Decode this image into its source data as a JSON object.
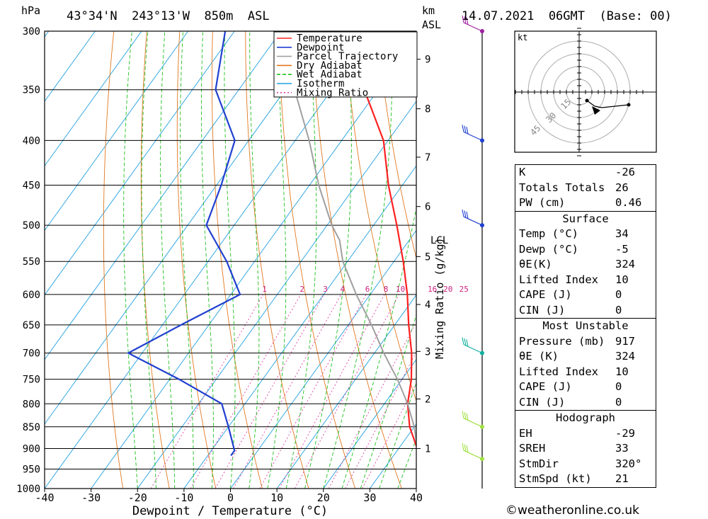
{
  "header": {
    "pressure_unit": "hPa",
    "location": "43°34'N  243°13'W  850m  ASL",
    "km_label": "km",
    "asl_label": "ASL",
    "datetime": "14.07.2021  06GMT  (Base: 00)"
  },
  "chart_data": {
    "type": "line",
    "xlabel": "Dewpoint / Temperature (°C)",
    "xlim": [
      -40,
      40
    ],
    "x_ticks": [
      -40,
      -30,
      -20,
      -10,
      0,
      10,
      20,
      30,
      40
    ],
    "ylabel": "hPa",
    "ylim": [
      1000,
      300
    ],
    "y_ticks": [
      300,
      350,
      400,
      450,
      500,
      550,
      600,
      650,
      700,
      750,
      800,
      850,
      900,
      950,
      1000
    ],
    "scale": "skew-T log-p",
    "legend_position": "top-right",
    "legend": [
      "Temperature",
      "Dewpoint",
      "Parcel Trajectory",
      "Dry Adiabat",
      "Wet Adiabat",
      "Isotherm",
      "Mixing Ratio"
    ],
    "series": [
      {
        "name": "Temperature",
        "color": "#ff2020",
        "points": [
          [
            920,
            39
          ],
          [
            917,
            37
          ],
          [
            900,
            34
          ],
          [
            850,
            29
          ],
          [
            800,
            25
          ],
          [
            750,
            22
          ],
          [
            700,
            18
          ],
          [
            650,
            13
          ],
          [
            600,
            8
          ],
          [
            550,
            2
          ],
          [
            500,
            -5
          ],
          [
            450,
            -13
          ],
          [
            400,
            -21
          ],
          [
            350,
            -33
          ],
          [
            320,
            -41
          ],
          [
            300,
            -45
          ]
        ]
      },
      {
        "name": "Dewpoint",
        "color": "#2040d0",
        "points": [
          [
            917,
            -5
          ],
          [
            905,
            -5
          ],
          [
            850,
            -10
          ],
          [
            800,
            -15
          ],
          [
            750,
            -28
          ],
          [
            700,
            -43
          ],
          [
            650,
            -36
          ],
          [
            600,
            -28
          ],
          [
            550,
            -36
          ],
          [
            500,
            -46
          ],
          [
            450,
            -49
          ],
          [
            400,
            -53
          ],
          [
            350,
            -65
          ],
          [
            300,
            -72
          ]
        ]
      },
      {
        "name": "Parcel Trajectory",
        "color": "#a0a0a0",
        "points": [
          [
            900,
            34
          ],
          [
            850,
            30
          ],
          [
            800,
            25
          ],
          [
            750,
            19
          ],
          [
            700,
            12
          ],
          [
            650,
            5
          ],
          [
            600,
            -3
          ],
          [
            550,
            -11
          ],
          [
            520,
            -15
          ],
          [
            500,
            -19
          ],
          [
            450,
            -28
          ],
          [
            400,
            -37
          ],
          [
            350,
            -48
          ],
          [
            300,
            -60
          ]
        ]
      }
    ],
    "mixing_ratio_labels": [
      "1",
      "2",
      "3",
      "4",
      "6",
      "8",
      "10",
      "16",
      "20",
      "25"
    ],
    "mixing_ratio_axis_label": "Mixing Ratio (g/kg)",
    "altitude_km_ticks": [
      "1",
      "2",
      "3",
      "4",
      "5",
      "6",
      "7",
      "8",
      "9"
    ],
    "lcl_label": "LCL",
    "hodograph_unit": "kt",
    "hodograph_ring_labels": [
      "15",
      "30",
      "45"
    ]
  },
  "indices": {
    "rows": [
      {
        "label": "K",
        "value": "-26"
      },
      {
        "label": "Totals Totals",
        "value": "26"
      },
      {
        "label": "PW (cm)",
        "value": "0.46"
      }
    ]
  },
  "surface": {
    "title": "Surface",
    "rows": [
      {
        "label": "Temp (°C)",
        "value": "34"
      },
      {
        "label": "Dewp (°C)",
        "value": "-5"
      },
      {
        "label": "θE(K)",
        "value": "324"
      },
      {
        "label": "Lifted Index",
        "value": "10"
      },
      {
        "label": "CAPE (J)",
        "value": "0"
      },
      {
        "label": "CIN (J)",
        "value": "0"
      }
    ]
  },
  "most_unstable": {
    "title": "Most Unstable",
    "rows": [
      {
        "label": "Pressure (mb)",
        "value": "917"
      },
      {
        "label": "θE (K)",
        "value": "324"
      },
      {
        "label": "Lifted Index",
        "value": "10"
      },
      {
        "label": "CAPE (J)",
        "value": "0"
      },
      {
        "label": "CIN (J)",
        "value": "0"
      }
    ]
  },
  "hodograph": {
    "title": "Hodograph",
    "rows": [
      {
        "label": "EH",
        "value": "-29"
      },
      {
        "label": "SREH",
        "value": "33"
      },
      {
        "label": "StmDir",
        "value": "320°"
      },
      {
        "label": "StmSpd (kt)",
        "value": "21"
      }
    ]
  },
  "copyright": "©weatheronline.co.uk"
}
